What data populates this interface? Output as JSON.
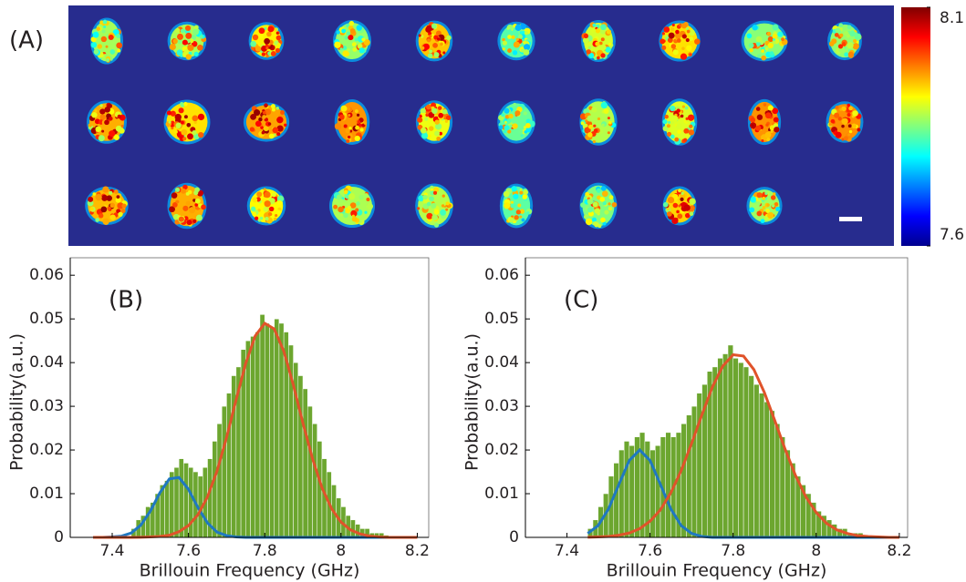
{
  "chart_data": [
    {
      "type": "heatmap",
      "label": "(A)",
      "colormap": "jet",
      "background": "#272c8e",
      "colorbar": {
        "clim": [
          7.6,
          8.1
        ],
        "ticks": [
          7.6,
          8.1
        ]
      }
    },
    {
      "type": "histogram",
      "label": "(B)",
      "xlabel": "Brillouin Frequency (GHz)",
      "ylabel": "Probability(a.u.)",
      "color": "#6ca62f",
      "bins": [
        7.45,
        7.4625,
        7.475,
        7.4875,
        7.5,
        7.5125,
        7.525,
        7.5375,
        7.55,
        7.5625,
        7.575,
        7.5875,
        7.6,
        7.6125,
        7.625,
        7.6375,
        7.65,
        7.6625,
        7.675,
        7.6875,
        7.7,
        7.7125,
        7.725,
        7.7375,
        7.75,
        7.7625,
        7.775,
        7.7875,
        7.8,
        7.8125,
        7.825,
        7.8375,
        7.85,
        7.8625,
        7.875,
        7.8875,
        7.9,
        7.9125,
        7.925,
        7.9375,
        7.95,
        7.9625,
        7.975,
        7.9875,
        8.0,
        8.0125,
        8.025,
        8.0375,
        8.05,
        8.0625,
        8.075,
        8.0875,
        8.1,
        8.1125,
        8.125
      ],
      "values": [
        0.002,
        0.004,
        0.005,
        0.007,
        0.008,
        0.01,
        0.012,
        0.013,
        0.015,
        0.016,
        0.018,
        0.017,
        0.016,
        0.015,
        0.014,
        0.016,
        0.018,
        0.022,
        0.026,
        0.03,
        0.033,
        0.037,
        0.039,
        0.043,
        0.045,
        0.046,
        0.047,
        0.051,
        0.049,
        0.048,
        0.05,
        0.049,
        0.047,
        0.044,
        0.04,
        0.037,
        0.034,
        0.03,
        0.026,
        0.022,
        0.018,
        0.015,
        0.012,
        0.009,
        0.007,
        0.005,
        0.004,
        0.003,
        0.002,
        0.002,
        0.001,
        0.001,
        0.001,
        0.0005
      ],
      "fits": {
        "x": [
          7.35,
          7.375,
          7.4,
          7.425,
          7.45,
          7.475,
          7.5,
          7.525,
          7.55,
          7.575,
          7.6,
          7.625,
          7.65,
          7.675,
          7.7,
          7.725,
          7.75,
          7.775,
          7.8,
          7.825,
          7.85,
          7.875,
          7.9,
          7.925,
          7.95,
          7.975,
          8.0,
          8.025,
          8.05,
          8.075,
          8.1,
          8.125,
          8.15,
          8.175,
          8.2
        ],
        "series": [
          {
            "color": "#1f78c1",
            "values": [
              0,
              0,
              0.0001,
              0.0003,
              0.001,
              0.0028,
              0.006,
              0.0102,
              0.0134,
              0.0137,
              0.011,
              0.0068,
              0.0033,
              0.0012,
              0.0004,
              0.0001,
              0,
              0,
              0,
              0,
              0,
              0,
              0,
              0,
              0,
              0,
              0,
              0,
              0,
              0,
              0,
              0,
              0,
              0,
              0
            ]
          },
          {
            "color": "#e0532a",
            "values": [
              0,
              0,
              0,
              0,
              0,
              3e-05,
              0.0001,
              0.0002,
              0.0005,
              0.0013,
              0.0027,
              0.0052,
              0.0093,
              0.0152,
              0.0229,
              0.0315,
              0.0398,
              0.0461,
              0.049,
              0.0477,
              0.0426,
              0.0349,
              0.0262,
              0.0181,
              0.0114,
              0.0066,
              0.0035,
              0.0017,
              0.0008,
              0.0003,
              0.0001,
              0,
              0,
              0,
              0
            ]
          }
        ]
      },
      "xlim": [
        7.29,
        8.23
      ],
      "xticks": [
        7.4,
        7.6,
        7.8,
        8,
        8.2
      ],
      "ylim": [
        0,
        0.064
      ],
      "yticks": [
        0,
        0.01,
        0.02,
        0.03,
        0.04,
        0.05,
        0.06
      ]
    },
    {
      "type": "histogram",
      "label": "(C)",
      "xlabel": "Brillouin Frequency (GHz)",
      "ylabel": "Probability(a.u.)",
      "color": "#6ca62f",
      "bins": [
        7.45,
        7.4625,
        7.475,
        7.4875,
        7.5,
        7.5125,
        7.525,
        7.5375,
        7.55,
        7.5625,
        7.575,
        7.5875,
        7.6,
        7.6125,
        7.625,
        7.6375,
        7.65,
        7.6625,
        7.675,
        7.6875,
        7.7,
        7.7125,
        7.725,
        7.7375,
        7.75,
        7.7625,
        7.775,
        7.7875,
        7.8,
        7.8125,
        7.825,
        7.8375,
        7.85,
        7.8625,
        7.875,
        7.8875,
        7.9,
        7.9125,
        7.925,
        7.9375,
        7.95,
        7.9625,
        7.975,
        7.9875,
        8.0,
        8.0125,
        8.025,
        8.0375,
        8.05,
        8.0625,
        8.075,
        8.0875,
        8.1,
        8.1125,
        8.125
      ],
      "values": [
        0.002,
        0.004,
        0.007,
        0.01,
        0.014,
        0.017,
        0.02,
        0.022,
        0.021,
        0.023,
        0.024,
        0.022,
        0.02,
        0.021,
        0.023,
        0.024,
        0.023,
        0.024,
        0.026,
        0.028,
        0.03,
        0.033,
        0.035,
        0.038,
        0.039,
        0.041,
        0.042,
        0.044,
        0.041,
        0.04,
        0.039,
        0.037,
        0.035,
        0.033,
        0.031,
        0.029,
        0.026,
        0.023,
        0.02,
        0.017,
        0.014,
        0.012,
        0.01,
        0.008,
        0.006,
        0.005,
        0.004,
        0.003,
        0.002,
        0.002,
        0.001,
        0.001,
        0.001,
        0.0005
      ],
      "fits": {
        "x": [
          7.45,
          7.475,
          7.5,
          7.525,
          7.55,
          7.575,
          7.6,
          7.625,
          7.65,
          7.675,
          7.7,
          7.725,
          7.75,
          7.775,
          7.8,
          7.825,
          7.85,
          7.875,
          7.9,
          7.925,
          7.95,
          7.975,
          8.0,
          8.025,
          8.05,
          8.075,
          8.1,
          8.125,
          8.15,
          8.175,
          8.2
        ],
        "series": [
          {
            "color": "#1f78c1",
            "values": [
              0.0009,
              0.0027,
              0.0065,
              0.0121,
              0.0176,
              0.02,
              0.0176,
              0.0121,
              0.0065,
              0.0027,
              0.0009,
              0.0002,
              0,
              0,
              0,
              0,
              0,
              0,
              0,
              0,
              0,
              0,
              0,
              0,
              0,
              0,
              0,
              0,
              0,
              0,
              0
            ]
          },
          {
            "color": "#e0532a",
            "values": [
              3e-05,
              0.0001,
              0.0002,
              0.0005,
              0.001,
              0.002,
              0.0037,
              0.0063,
              0.0102,
              0.0153,
              0.0215,
              0.0281,
              0.0344,
              0.0392,
              0.0418,
              0.0415,
              0.0384,
              0.0332,
              0.0268,
              0.0202,
              0.0142,
              0.0093,
              0.0057,
              0.0032,
              0.0017,
              0.0009,
              0.0004,
              0.0002,
              0.0001,
              0,
              0
            ]
          }
        ]
      },
      "xlim": [
        7.3,
        8.22
      ],
      "xticks": [
        7.4,
        7.6,
        7.8,
        8,
        8.2
      ],
      "ylim": [
        0,
        0.064
      ],
      "yticks": [
        0,
        0.01,
        0.02,
        0.03,
        0.04,
        0.05,
        0.06
      ]
    }
  ]
}
